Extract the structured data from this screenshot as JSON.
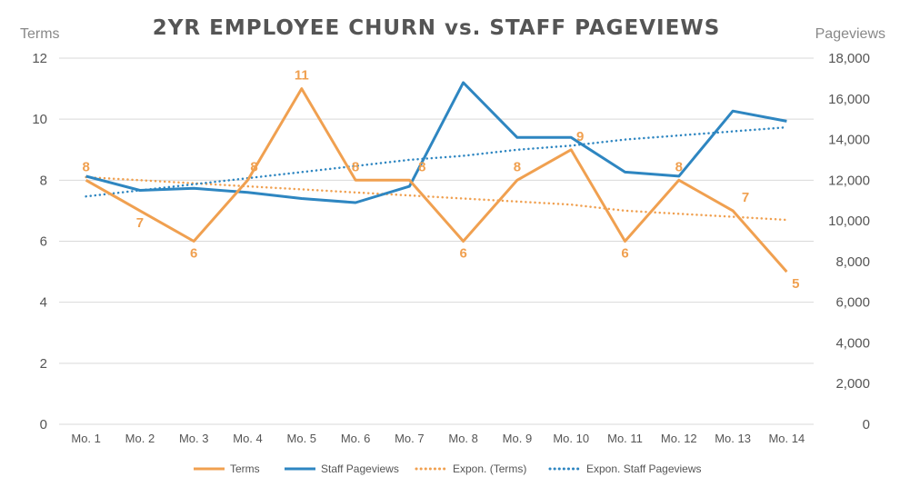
{
  "chart_data": {
    "type": "line",
    "title": "2YR EMPLOYEE CHURN vs. STAFF PAGEVIEWS",
    "ylabel_left": "Terms",
    "ylabel_right": "Pageviews",
    "categories": [
      "Mo. 1",
      "Mo. 2",
      "Mo. 3",
      "Mo. 4",
      "Mo. 5",
      "Mo. 6",
      "Mo. 7",
      "Mo. 8",
      "Mo. 9",
      "Mo. 10",
      "Mo. 11",
      "Mo. 12",
      "Mo. 13",
      "Mo. 14"
    ],
    "y_left": {
      "min": 0,
      "max": 12,
      "ticks": [
        "0",
        "2",
        "4",
        "6",
        "8",
        "10",
        "12"
      ]
    },
    "y_right": {
      "min": 0,
      "max": 18000,
      "ticks": [
        "0",
        "2,000",
        "4,000",
        "6,000",
        "8,000",
        "10,000",
        "12,000",
        "14,000",
        "16,000",
        "18,000"
      ]
    },
    "grid": true,
    "legend_position": "bottom",
    "series": [
      {
        "name": "Terms",
        "axis": "left",
        "color": "#f0a050",
        "values": [
          8,
          7,
          6,
          8,
          11,
          8,
          8,
          6,
          8,
          9,
          6,
          8,
          7,
          5
        ],
        "labels": [
          "8",
          "7",
          "6",
          "8",
          "11",
          "8",
          "8",
          "6",
          "8",
          "9",
          "6",
          "8",
          "7",
          "5"
        ]
      },
      {
        "name": "Staff Pageviews",
        "axis": "right",
        "color": "#2e86c1",
        "values": [
          12200,
          11500,
          11600,
          11400,
          11100,
          10900,
          11700,
          16800,
          14100,
          14100,
          12400,
          12200,
          15400,
          14900
        ]
      },
      {
        "name": "Expon. (Terms)",
        "axis": "left",
        "color": "#f0a050",
        "style": "dotted",
        "values": [
          8.1,
          8.0,
          7.9,
          7.8,
          7.7,
          7.6,
          7.5,
          7.4,
          7.3,
          7.2,
          7.0,
          6.9,
          6.8,
          6.7
        ]
      },
      {
        "name": "Expon. Staff Pageviews",
        "axis": "right",
        "color": "#2e86c1",
        "style": "dotted",
        "values": [
          11200,
          11500,
          11800,
          12100,
          12400,
          12700,
          13000,
          13200,
          13500,
          13700,
          14000,
          14200,
          14400,
          14600
        ]
      }
    ]
  }
}
